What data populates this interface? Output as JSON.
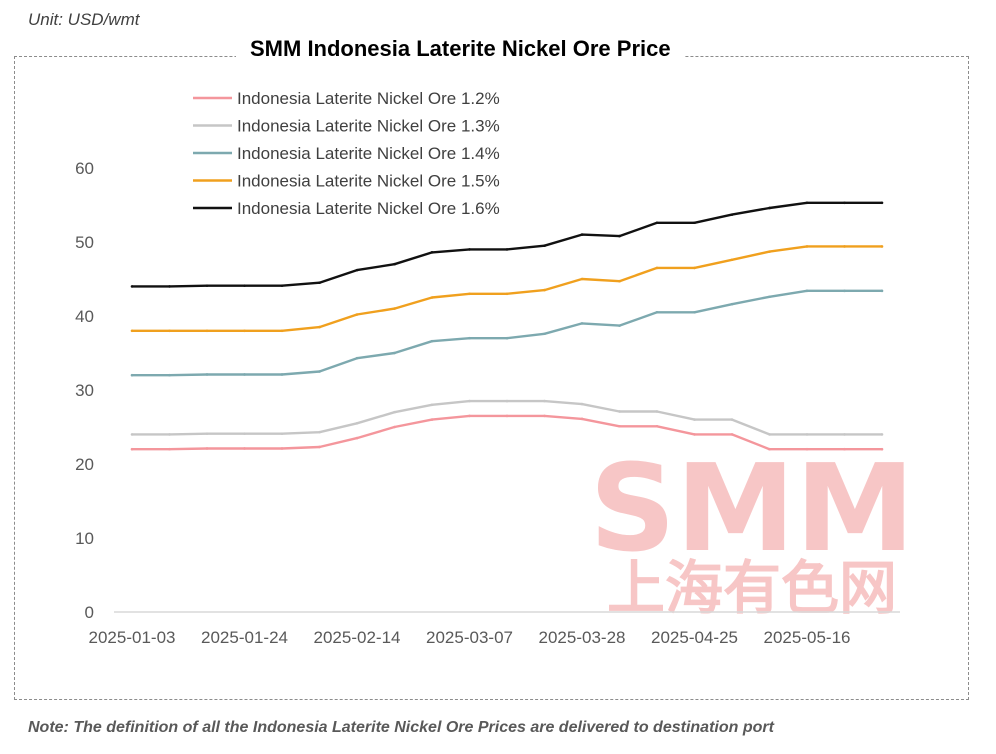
{
  "unit_label": "Unit: USD/wmt",
  "note": "Note: The definition of all the Indonesia Laterite Nickel Ore Prices are delivered to destination port",
  "watermark": {
    "brand": "SMM",
    "chinese": "上海有色网"
  },
  "colors": {
    "axis": "#d9d9d9",
    "tick_text": "#595959",
    "watermark": "#f7c6c6"
  },
  "chart_data": {
    "type": "line",
    "title": "SMM Indonesia Laterite Nickel Ore Price",
    "xlabel": "",
    "ylabel": "",
    "ylim": [
      0,
      60
    ],
    "yticks": [
      0,
      10,
      20,
      30,
      40,
      50,
      60
    ],
    "grid": false,
    "legend_position": "top-left",
    "x_tick_labels": [
      "2025-01-03",
      "2025-01-24",
      "2025-02-14",
      "2025-03-07",
      "2025-03-28",
      "2025-04-25",
      "2025-05-16"
    ],
    "x_tick_indices": [
      0,
      3,
      6,
      9,
      12,
      15,
      18
    ],
    "x_count": 21,
    "series": [
      {
        "name": "Indonesia Laterite Nickel Ore 1.2%",
        "color": "#f4969c",
        "values": [
          22,
          22,
          22.1,
          22.1,
          22.1,
          22.3,
          23.5,
          25,
          26,
          26.5,
          26.5,
          26.5,
          26.1,
          25.1,
          25.1,
          24,
          24,
          22,
          22,
          22,
          22
        ]
      },
      {
        "name": "Indonesia Laterite Nickel Ore 1.3%",
        "color": "#c6c6c6",
        "values": [
          24,
          24,
          24.1,
          24.1,
          24.1,
          24.3,
          25.5,
          27,
          28,
          28.5,
          28.5,
          28.5,
          28.1,
          27.1,
          27.1,
          26,
          26,
          24,
          24,
          24,
          24
        ]
      },
      {
        "name": "Indonesia Laterite Nickel Ore 1.4%",
        "color": "#7da9af",
        "values": [
          32,
          32,
          32.1,
          32.1,
          32.1,
          32.5,
          34.3,
          35,
          36.6,
          37,
          37,
          37.6,
          39,
          38.7,
          40.5,
          40.5,
          41.6,
          42.6,
          43.4,
          43.4,
          43.4
        ]
      },
      {
        "name": "Indonesia Laterite Nickel Ore 1.5%",
        "color": "#f0a01e",
        "values": [
          38,
          38,
          38,
          38,
          38,
          38.5,
          40.2,
          41,
          42.5,
          43,
          43,
          43.5,
          45,
          44.7,
          46.5,
          46.5,
          47.6,
          48.7,
          49.4,
          49.4,
          49.4
        ]
      },
      {
        "name": "Indonesia Laterite Nickel Ore 1.6%",
        "color": "#111111",
        "values": [
          44,
          44,
          44.1,
          44.1,
          44.1,
          44.5,
          46.2,
          47,
          48.6,
          49,
          49,
          49.5,
          51,
          50.8,
          52.6,
          52.6,
          53.7,
          54.6,
          55.3,
          55.3,
          55.3
        ]
      }
    ]
  }
}
